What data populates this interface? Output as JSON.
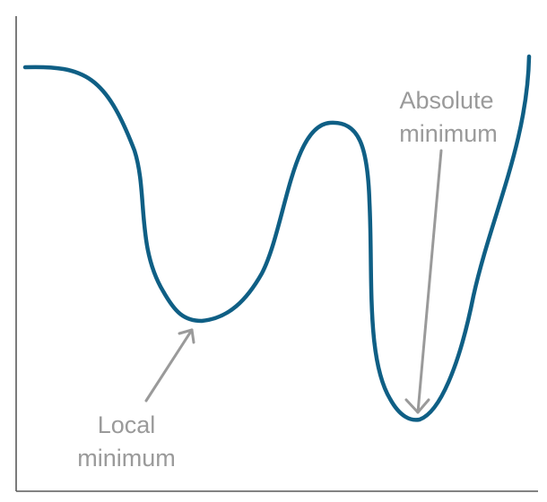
{
  "colors": {
    "curve": "#0f5f85",
    "annotation": "#9a9a9a",
    "axis": "#5a5a5a",
    "background": "#ffffff"
  },
  "annotations": {
    "local": {
      "line1": "Local",
      "line2": "minimum"
    },
    "absolute": {
      "line1": "Absolute",
      "line2": "minimum"
    }
  }
}
